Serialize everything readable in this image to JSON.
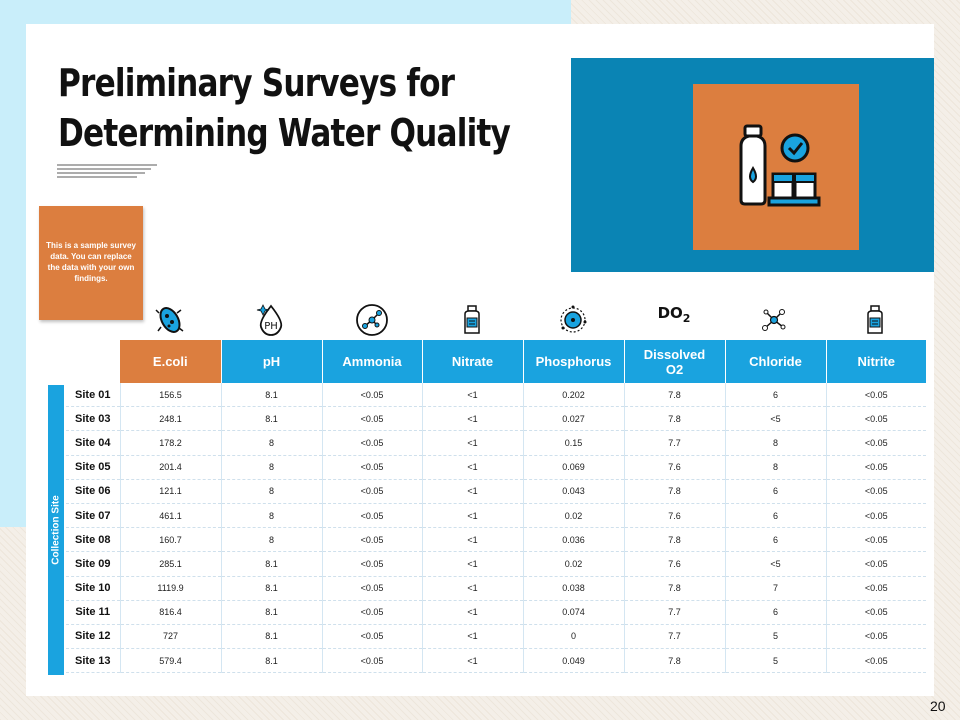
{
  "slide": {
    "title_line1": "Preliminary Surveys for",
    "title_line2": "Determining Water Quality",
    "note": "This is a sample survey data. You can replace the data with your own findings.",
    "page_number": "20"
  },
  "colors": {
    "orange": "#dc7e3f",
    "blue": "#1aa3df",
    "hero_blue": "#0a84b4",
    "light_blue_bg": "#c9eefa"
  },
  "table": {
    "axis_label": "Collection Site",
    "icons": [
      "bacteria-icon",
      "ph-drop-icon",
      "ammonia-molecule-icon",
      "nitrate-bottle-icon",
      "phosphorus-atom-icon",
      "do2-text-icon",
      "chloride-molecule-icon",
      "nitrite-bottle-icon"
    ],
    "do2_label": "DO",
    "do2_sub": "2",
    "ph_icon_text": "PH",
    "columns": [
      "E.coli",
      "pH",
      "Ammonia",
      "Nitrate",
      "Phosphorus",
      "Dissolved O2",
      "Chloride",
      "Nitrite"
    ],
    "rows": [
      {
        "site": "Site 01",
        "values": [
          "156.5",
          "8.1",
          "<0.05",
          "<1",
          "0.202",
          "7.8",
          "6",
          "<0.05"
        ]
      },
      {
        "site": "Site 03",
        "values": [
          "248.1",
          "8.1",
          "<0.05",
          "<1",
          "0.027",
          "7.8",
          "<5",
          "<0.05"
        ]
      },
      {
        "site": "Site 04",
        "values": [
          "178.2",
          "8",
          "<0.05",
          "<1",
          "0.15",
          "7.7",
          "8",
          "<0.05"
        ]
      },
      {
        "site": "Site 05",
        "values": [
          "201.4",
          "8",
          "<0.05",
          "<1",
          "0.069",
          "7.6",
          "8",
          "<0.05"
        ]
      },
      {
        "site": "Site 06",
        "values": [
          "121.1",
          "8",
          "<0.05",
          "<1",
          "0.043",
          "7.8",
          "6",
          "<0.05"
        ]
      },
      {
        "site": "Site 07",
        "values": [
          "461.1",
          "8",
          "<0.05",
          "<1",
          "0.02",
          "7.6",
          "6",
          "<0.05"
        ]
      },
      {
        "site": "Site 08",
        "values": [
          "160.7",
          "8",
          "<0.05",
          "<1",
          "0.036",
          "7.8",
          "6",
          "<0.05"
        ]
      },
      {
        "site": "Site 09",
        "values": [
          "285.1",
          "8.1",
          "<0.05",
          "<1",
          "0.02",
          "7.6",
          "<5",
          "<0.05"
        ]
      },
      {
        "site": "Site 10",
        "values": [
          "1119.9",
          "8.1",
          "<0.05",
          "<1",
          "0.038",
          "7.8",
          "7",
          "<0.05"
        ]
      },
      {
        "site": "Site 11",
        "values": [
          "816.4",
          "8.1",
          "<0.05",
          "<1",
          "0.074",
          "7.7",
          "6",
          "<0.05"
        ]
      },
      {
        "site": "Site 12",
        "values": [
          "727",
          "8.1",
          "<0.05",
          "<1",
          "0",
          "7.7",
          "5",
          "<0.05"
        ]
      },
      {
        "site": "Site 13",
        "values": [
          "579.4",
          "8.1",
          "<0.05",
          "<1",
          "0.049",
          "7.8",
          "5",
          "<0.05"
        ]
      }
    ]
  }
}
